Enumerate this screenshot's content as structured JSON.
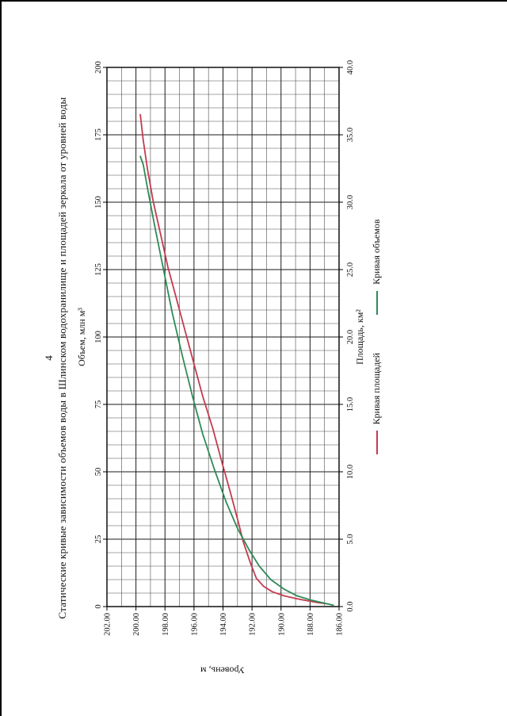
{
  "page": {
    "number": "4",
    "title": "Статические кривые зависимости объемов воды в Шлинском водохранилище и площадей зеркала от уровней воды"
  },
  "chart_data": {
    "type": "line",
    "title": "Статические кривые зависимости объемов воды в Шлинском водохранилище и площадей зеркала от уровней воды",
    "page_rotation_deg": 90,
    "grid": {
      "x_minor": 1,
      "y_minor": 1,
      "grid_on": true
    },
    "legend_position": "bottom",
    "axes": {
      "top": {
        "label": "Объем, млн м³",
        "min": 0,
        "max": 200,
        "tick_step": 25,
        "tick_labels": [
          "0",
          "25",
          "50",
          "75",
          "100",
          "125",
          "150",
          "175",
          "200"
        ]
      },
      "bottom": {
        "label": "Площадь, км²",
        "min": 0,
        "max": 40,
        "tick_step": 5,
        "tick_labels": [
          "0.0",
          "5.0",
          "10.0",
          "15.0",
          "20.0",
          "25.0",
          "30.0",
          "35.0",
          "40.0"
        ]
      },
      "left": {
        "label": "Уровень, м",
        "min": 186,
        "max": 202,
        "tick_step": 2,
        "tick_labels": [
          "202.00",
          "200.00",
          "198.00",
          "196.00",
          "194.00",
          "192.00",
          "190.00",
          "188.00",
          "186.00"
        ]
      }
    },
    "series": [
      {
        "name": "Кривая площадей",
        "color": "#c43b4e",
        "x_axis": "bottom",
        "points": [
          [
            0.2,
            186.8
          ],
          [
            0.3,
            187.5
          ],
          [
            0.45,
            188.3
          ],
          [
            0.6,
            189.0
          ],
          [
            0.8,
            189.8
          ],
          [
            1.1,
            190.6
          ],
          [
            1.5,
            191.2
          ],
          [
            2.1,
            191.7
          ],
          [
            3.2,
            192.1
          ],
          [
            4.8,
            192.6
          ],
          [
            6.5,
            193.0
          ],
          [
            8.5,
            193.5
          ],
          [
            10.8,
            194.1
          ],
          [
            13.2,
            194.7
          ],
          [
            15.6,
            195.4
          ],
          [
            18.0,
            196.0
          ],
          [
            20.4,
            196.6
          ],
          [
            22.8,
            197.2
          ],
          [
            25.2,
            197.8
          ],
          [
            27.6,
            198.3
          ],
          [
            30.0,
            198.8
          ],
          [
            32.4,
            199.2
          ],
          [
            34.6,
            199.5
          ],
          [
            36.5,
            199.7
          ]
        ]
      },
      {
        "name": "Кривая объемов",
        "color": "#2e8b57",
        "x_axis": "top",
        "points": [
          [
            0.5,
            186.4
          ],
          [
            1.5,
            187.2
          ],
          [
            2.5,
            188.0
          ],
          [
            4,
            188.9
          ],
          [
            6.5,
            189.8
          ],
          [
            10,
            190.7
          ],
          [
            15,
            191.5
          ],
          [
            21,
            192.2
          ],
          [
            29,
            193.0
          ],
          [
            39,
            193.8
          ],
          [
            51,
            194.6
          ],
          [
            64,
            195.4
          ],
          [
            78,
            196.1
          ],
          [
            93,
            196.8
          ],
          [
            109,
            197.5
          ],
          [
            125,
            198.1
          ],
          [
            141,
            198.7
          ],
          [
            155,
            199.2
          ],
          [
            164,
            199.5
          ],
          [
            167,
            199.7
          ]
        ]
      }
    ]
  }
}
